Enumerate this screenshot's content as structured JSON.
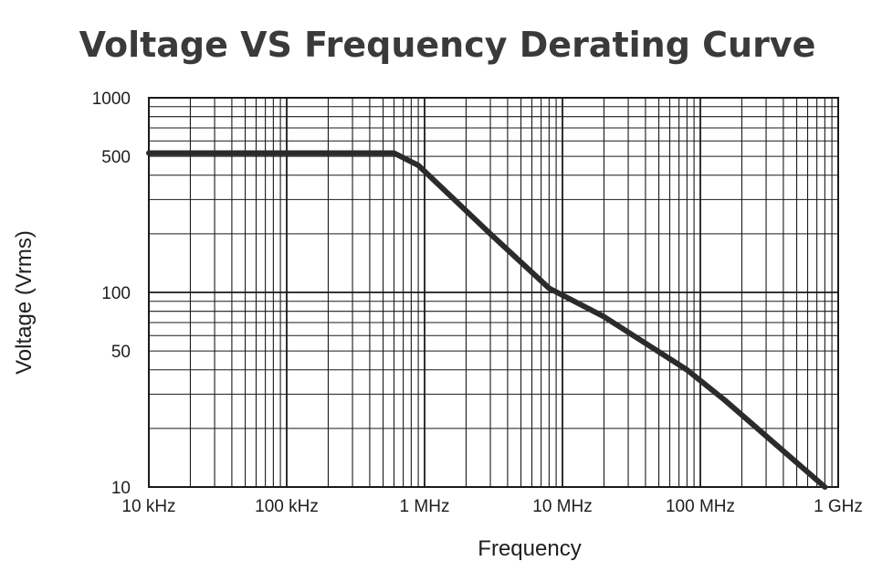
{
  "chart_data": {
    "type": "line",
    "title": "Voltage VS Frequency Derating Curve",
    "xlabel": "Frequency",
    "ylabel": "Voltage (Vrms)",
    "x_scale": "log",
    "y_scale": "log",
    "xlim": [
      10000,
      1000000000
    ],
    "ylim": [
      10,
      1000
    ],
    "grid": true,
    "x_ticks": [
      {
        "value": 10000,
        "label": "10 kHz"
      },
      {
        "value": 100000,
        "label": "100 kHz"
      },
      {
        "value": 1000000,
        "label": "1 MHz"
      },
      {
        "value": 10000000,
        "label": "10 MHz"
      },
      {
        "value": 100000000,
        "label": "100 MHz"
      },
      {
        "value": 1000000000,
        "label": "1 GHz"
      }
    ],
    "y_ticks": [
      {
        "value": 1000,
        "label": "1000"
      },
      {
        "value": 500,
        "label": "500"
      },
      {
        "value": 100,
        "label": "100"
      },
      {
        "value": 50,
        "label": "50"
      },
      {
        "value": 10,
        "label": "10"
      }
    ],
    "series": [
      {
        "color": "#2b2b2b",
        "points": [
          {
            "x": 10000,
            "y": 520
          },
          {
            "x": 600000,
            "y": 520
          },
          {
            "x": 900000,
            "y": 450
          },
          {
            "x": 3000000,
            "y": 200
          },
          {
            "x": 8000000,
            "y": 105
          },
          {
            "x": 20000000,
            "y": 75
          },
          {
            "x": 80000000,
            "y": 40
          },
          {
            "x": 150000000,
            "y": 28
          },
          {
            "x": 800000000,
            "y": 10
          }
        ]
      }
    ],
    "colors": {
      "grid": "#1a1a1a",
      "curve": "#2b2b2b",
      "title": "#3a3a3a"
    }
  }
}
